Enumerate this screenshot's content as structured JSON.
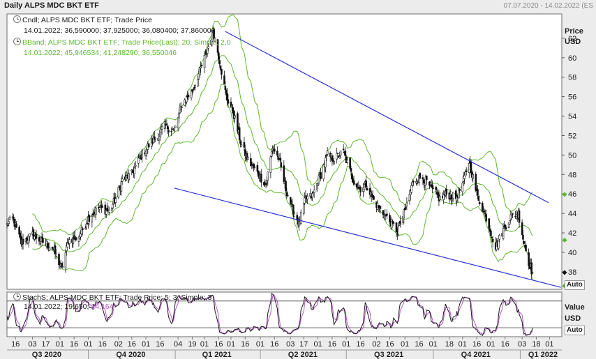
{
  "header": {
    "title": "Daily ALPS MDC BKT ETF",
    "date_range": "07.07.2020 - 14.02.2022 (ES"
  },
  "main_panel": {
    "legend": [
      {
        "label": "Cndl; ALPS MDC BKT ETF; Trade Price",
        "values": "14.01.2022; 36,590000; 37,925000; 36,080400; 37,860000",
        "color": "#1a1a1a"
      },
      {
        "label": "BBand; ALPS MDC BKT ETF; Trade Price(Last); 20; Simple; 2,0",
        "values": "14.01.2022; 45,946534; 41,248290; 36,550046",
        "color": "#5cb82e"
      }
    ],
    "y_title": "Price",
    "y_unit": "USD",
    "y_ticks": [
      "62",
      "60",
      "58",
      "56",
      "54",
      "52",
      "50",
      "48",
      "46",
      "44",
      "42",
      "40",
      "38"
    ],
    "auto_label": "Auto"
  },
  "stoch_panel": {
    "legend_label": "StochS; ALPS MDC BKT ETF; Trade Price; 5; 3; Simple; 3",
    "legend_date": "14.01.2022;",
    "k_value": "19,650;",
    "d_value": "14,164",
    "k_color": "#1a1a1a",
    "d_color": "#b455c8",
    "y_title": "Value",
    "y_unit": "USD",
    "auto_label": "Auto"
  },
  "x_axis": {
    "ticks": [
      {
        "label": "16",
        "d": "2020-07-16"
      },
      {
        "label": "03",
        "d": "2020-08-03"
      },
      {
        "label": "17",
        "d": "2020-08-17"
      },
      {
        "label": "01",
        "d": "2020-09-01"
      },
      {
        "label": "16",
        "d": "2020-09-16"
      },
      {
        "label": "01",
        "d": "2020-10-01"
      },
      {
        "label": "16",
        "d": "2020-10-16"
      },
      {
        "label": "02",
        "d": "2020-11-02"
      },
      {
        "label": "16",
        "d": "2020-11-16"
      },
      {
        "label": "01",
        "d": "2020-12-01"
      },
      {
        "label": "16",
        "d": "2020-12-16"
      },
      {
        "label": "04",
        "d": "2021-01-04"
      },
      {
        "label": "19",
        "d": "2021-01-19"
      },
      {
        "label": "01",
        "d": "2021-02-01"
      },
      {
        "label": "16",
        "d": "2021-02-16"
      },
      {
        "label": "01",
        "d": "2021-03-01"
      },
      {
        "label": "16",
        "d": "2021-03-16"
      },
      {
        "label": "01",
        "d": "2021-04-01"
      },
      {
        "label": "16",
        "d": "2021-04-16"
      },
      {
        "label": "03",
        "d": "2021-05-03"
      },
      {
        "label": "17",
        "d": "2021-05-17"
      },
      {
        "label": "01",
        "d": "2021-06-01"
      },
      {
        "label": "16",
        "d": "2021-06-16"
      },
      {
        "label": "01",
        "d": "2021-07-01"
      },
      {
        "label": "16",
        "d": "2021-07-16"
      },
      {
        "label": "02",
        "d": "2021-08-02"
      },
      {
        "label": "16",
        "d": "2021-08-16"
      },
      {
        "label": "01",
        "d": "2021-09-01"
      },
      {
        "label": "16",
        "d": "2021-09-16"
      },
      {
        "label": "01",
        "d": "2021-10-01"
      },
      {
        "label": "18",
        "d": "2021-10-18"
      },
      {
        "label": "01",
        "d": "2021-11-01"
      },
      {
        "label": "16",
        "d": "2021-11-16"
      },
      {
        "label": "01",
        "d": "2021-12-01"
      },
      {
        "label": "16",
        "d": "2021-12-16"
      },
      {
        "label": "03",
        "d": "2022-01-03"
      },
      {
        "label": "18",
        "d": "2022-01-18"
      },
      {
        "label": "01",
        "d": "2022-02-01"
      }
    ],
    "quarters": [
      {
        "label": "Q3 2020",
        "d": "2020-08-18"
      },
      {
        "label": "Q4 2020",
        "d": "2020-11-15"
      },
      {
        "label": "Q1 2021",
        "d": "2021-02-14"
      },
      {
        "label": "Q2 2021",
        "d": "2021-05-16"
      },
      {
        "label": "Q3 2021",
        "d": "2021-08-15"
      },
      {
        "label": "Q4 2021",
        "d": "2021-11-15"
      },
      {
        "label": "Q1 2022",
        "d": "2022-02-02"
      }
    ]
  },
  "chart_data": [
    {
      "type": "candlestick",
      "name": "ALPS MDC BKT ETF",
      "ylim": [
        36.2,
        64.5
      ],
      "overlays": [
        "bollinger bands (20, 2.0)",
        "falling wedge trendlines"
      ],
      "anchors": [
        {
          "d": "2020-07-07",
          "v": 42.8
        },
        {
          "d": "2020-07-13",
          "v": 43.5
        },
        {
          "d": "2020-07-22",
          "v": 41.0
        },
        {
          "d": "2020-08-03",
          "v": 41.8
        },
        {
          "d": "2020-08-12",
          "v": 41.2
        },
        {
          "d": "2020-08-24",
          "v": 40.5
        },
        {
          "d": "2020-09-03",
          "v": 38.3
        },
        {
          "d": "2020-09-10",
          "v": 41.2
        },
        {
          "d": "2020-09-21",
          "v": 41.6
        },
        {
          "d": "2020-10-01",
          "v": 43.5
        },
        {
          "d": "2020-10-12",
          "v": 44.6
        },
        {
          "d": "2020-10-23",
          "v": 44.2
        },
        {
          "d": "2020-10-30",
          "v": 45.5
        },
        {
          "d": "2020-11-06",
          "v": 47.4
        },
        {
          "d": "2020-11-16",
          "v": 48.0
        },
        {
          "d": "2020-11-25",
          "v": 49.8
        },
        {
          "d": "2020-12-04",
          "v": 51.0
        },
        {
          "d": "2020-12-11",
          "v": 51.8
        },
        {
          "d": "2020-12-21",
          "v": 53.0
        },
        {
          "d": "2020-12-31",
          "v": 52.5
        },
        {
          "d": "2021-01-08",
          "v": 55.2
        },
        {
          "d": "2021-01-20",
          "v": 56.8
        },
        {
          "d": "2021-01-27",
          "v": 58.6
        },
        {
          "d": "2021-02-03",
          "v": 60.5
        },
        {
          "d": "2021-02-10",
          "v": 62.8
        },
        {
          "d": "2021-02-16",
          "v": 60.2
        },
        {
          "d": "2021-02-24",
          "v": 56.0
        },
        {
          "d": "2021-03-03",
          "v": 54.5
        },
        {
          "d": "2021-03-12",
          "v": 51.0
        },
        {
          "d": "2021-03-19",
          "v": 49.5
        },
        {
          "d": "2021-03-30",
          "v": 48.0
        },
        {
          "d": "2021-04-07",
          "v": 47.0
        },
        {
          "d": "2021-04-14",
          "v": 50.8
        },
        {
          "d": "2021-04-21",
          "v": 49.5
        },
        {
          "d": "2021-04-28",
          "v": 46.5
        },
        {
          "d": "2021-05-05",
          "v": 44.5
        },
        {
          "d": "2021-05-12",
          "v": 43.0
        },
        {
          "d": "2021-05-19",
          "v": 45.5
        },
        {
          "d": "2021-05-26",
          "v": 45.8
        },
        {
          "d": "2021-06-04",
          "v": 48.0
        },
        {
          "d": "2021-06-11",
          "v": 50.0
        },
        {
          "d": "2021-06-18",
          "v": 49.6
        },
        {
          "d": "2021-06-28",
          "v": 50.3
        },
        {
          "d": "2021-07-08",
          "v": 47.5
        },
        {
          "d": "2021-07-15",
          "v": 46.5
        },
        {
          "d": "2021-07-22",
          "v": 47.0
        },
        {
          "d": "2021-07-29",
          "v": 45.5
        },
        {
          "d": "2021-08-05",
          "v": 44.5
        },
        {
          "d": "2021-08-16",
          "v": 43.2
        },
        {
          "d": "2021-08-24",
          "v": 42.2
        },
        {
          "d": "2021-09-01",
          "v": 44.2
        },
        {
          "d": "2021-09-10",
          "v": 47.4
        },
        {
          "d": "2021-09-20",
          "v": 47.7
        },
        {
          "d": "2021-09-30",
          "v": 46.4
        },
        {
          "d": "2021-10-08",
          "v": 45.5
        },
        {
          "d": "2021-10-15",
          "v": 46.0
        },
        {
          "d": "2021-10-25",
          "v": 45.6
        },
        {
          "d": "2021-11-01",
          "v": 47.0
        },
        {
          "d": "2021-11-08",
          "v": 49.4
        },
        {
          "d": "2021-11-16",
          "v": 46.0
        },
        {
          "d": "2021-11-26",
          "v": 43.6
        },
        {
          "d": "2021-12-06",
          "v": 40.5
        },
        {
          "d": "2021-12-15",
          "v": 42.5
        },
        {
          "d": "2021-12-22",
          "v": 43.7
        },
        {
          "d": "2021-12-30",
          "v": 44.0
        },
        {
          "d": "2022-01-05",
          "v": 41.0
        },
        {
          "d": "2022-01-10",
          "v": 39.0
        },
        {
          "d": "2022-01-14",
          "v": 37.9
        }
      ],
      "trendlines": [
        {
          "name": "resistance",
          "from": {
            "d": "2021-02-23",
            "v": 62.7
          },
          "to": {
            "d": "2022-01-31",
            "v": 45.1
          },
          "color": "#2b2fd6"
        },
        {
          "name": "support",
          "from": {
            "d": "2020-12-31",
            "v": 46.6
          },
          "to": {
            "d": "2022-02-13",
            "v": 36.4
          },
          "color": "#2b2fd6"
        }
      ]
    },
    {
      "type": "line",
      "name": "StochS 5;3 Simple;3",
      "ylim": [
        0,
        100
      ],
      "reference_lines": [
        80,
        20
      ],
      "last": {
        "k": 19.65,
        "d": 14.164
      }
    }
  ]
}
